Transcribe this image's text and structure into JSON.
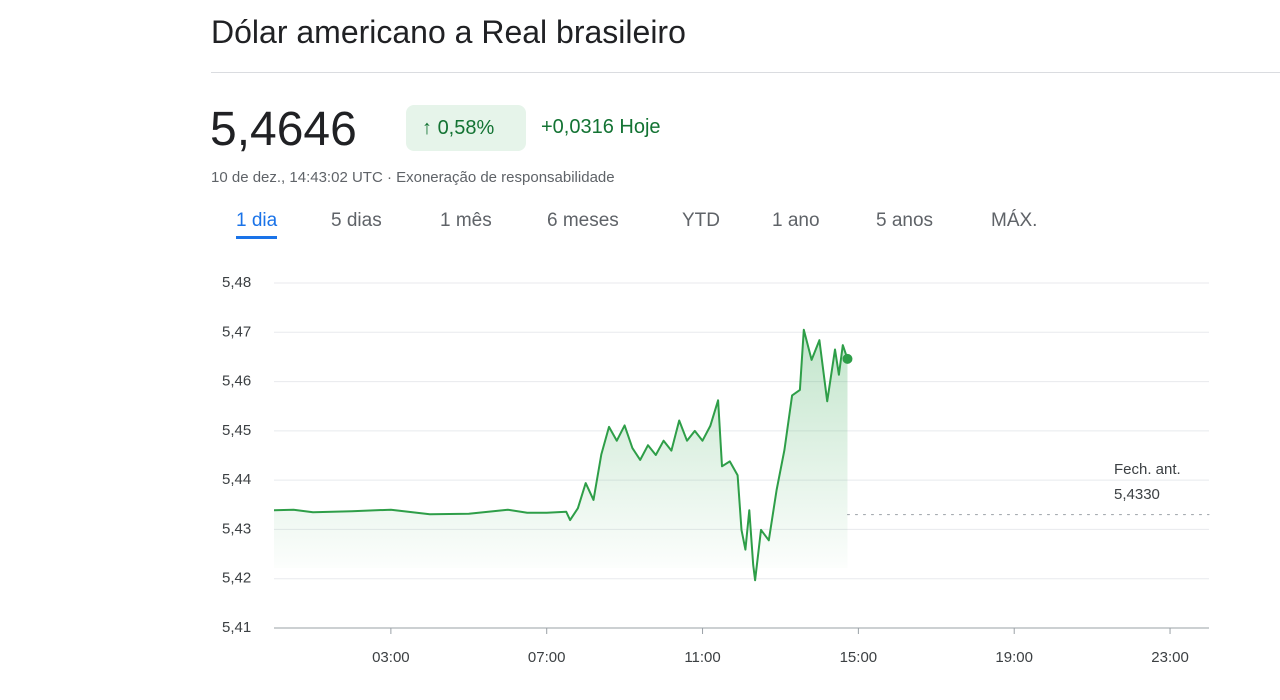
{
  "header": {
    "title": "Dólar americano a Real brasileiro",
    "price": "5,4646",
    "change_pct": "0,58%",
    "change_abs": "+0,0316",
    "change_period": "Hoje",
    "timestamp": "10 de dez., 14:43:02 UTC · Exoneração de responsabilidade"
  },
  "tabs": [
    "1 dia",
    "5 dias",
    "1 mês",
    "6 meses",
    "YTD",
    "1 ano",
    "5 anos",
    "MÁX."
  ],
  "chart_data": {
    "type": "line",
    "color": "#2e9e48",
    "grid": true,
    "x": [
      0,
      0.5,
      1,
      2,
      3,
      4,
      5,
      6,
      6.5,
      7,
      7.5,
      7.6,
      7.8,
      8,
      8.2,
      8.4,
      8.6,
      8.8,
      9,
      9.2,
      9.4,
      9.6,
      9.8,
      10,
      10.2,
      10.4,
      10.6,
      10.8,
      11,
      11.2,
      11.4,
      11.5,
      11.7,
      11.9,
      12,
      12.1,
      12.2,
      12.3,
      12.35,
      12.5,
      12.7,
      12.9,
      13.1,
      13.3,
      13.5,
      13.6,
      13.8,
      14,
      14.2,
      14.4,
      14.5,
      14.6,
      14.72
    ],
    "values": [
      5.4339,
      5.434,
      5.4335,
      5.4337,
      5.434,
      5.4331,
      5.4332,
      5.434,
      5.4334,
      5.4334,
      5.4336,
      5.4319,
      5.4343,
      5.4394,
      5.436,
      5.4452,
      5.4508,
      5.448,
      5.4511,
      5.4465,
      5.4441,
      5.4471,
      5.4451,
      5.448,
      5.446,
      5.4521,
      5.448,
      5.45,
      5.448,
      5.451,
      5.4562,
      5.4428,
      5.4438,
      5.441,
      5.4299,
      5.4259,
      5.4339,
      5.4228,
      5.4197,
      5.4299,
      5.4278,
      5.438,
      5.4461,
      5.4572,
      5.4583,
      5.4705,
      5.4644,
      5.4684,
      5.456,
      5.4665,
      5.4614,
      5.4674,
      5.4646
    ],
    "xlim": [
      0,
      24
    ],
    "xticks": [
      {
        "value": 3,
        "label": "03:00"
      },
      {
        "value": 7,
        "label": "07:00"
      },
      {
        "value": 11,
        "label": "11:00"
      },
      {
        "value": 15,
        "label": "15:00"
      },
      {
        "value": 19,
        "label": "19:00"
      },
      {
        "value": 23,
        "label": "23:00"
      }
    ],
    "ylim": [
      5.41,
      5.48
    ],
    "yticks": [
      {
        "value": 5.41,
        "label": "5,41"
      },
      {
        "value": 5.42,
        "label": "5,42"
      },
      {
        "value": 5.43,
        "label": "5,43"
      },
      {
        "value": 5.44,
        "label": "5,44"
      },
      {
        "value": 5.45,
        "label": "5,45"
      },
      {
        "value": 5.46,
        "label": "5,46"
      },
      {
        "value": 5.47,
        "label": "5,47"
      },
      {
        "value": 5.48,
        "label": "5,48"
      }
    ],
    "reference_line": {
      "label": "Fech. ant.",
      "value": 5.433,
      "value_label": "5,4330"
    }
  }
}
